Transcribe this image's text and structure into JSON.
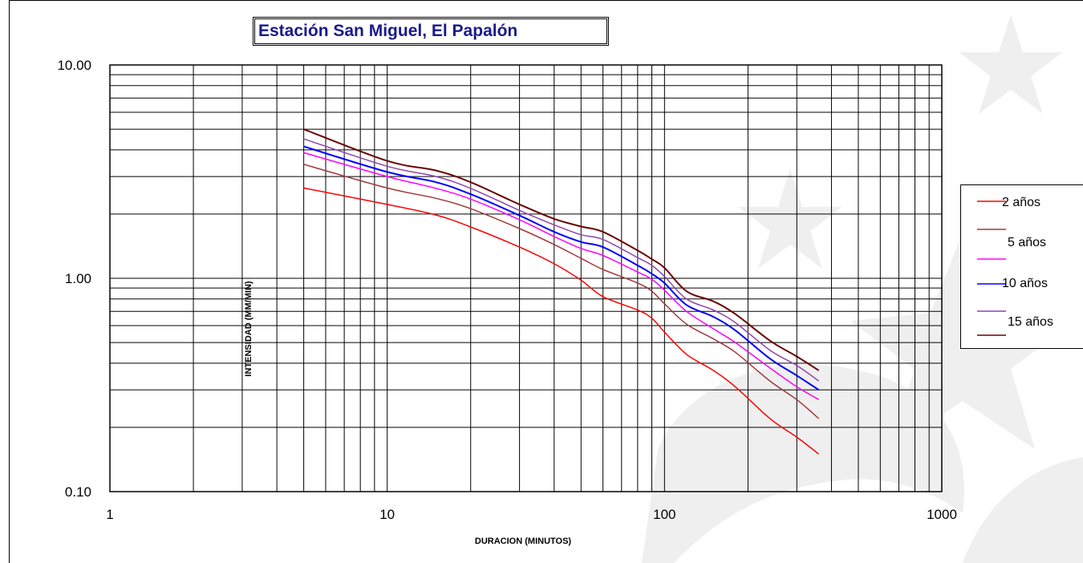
{
  "chart_data": {
    "type": "line",
    "title": "Estación San Miguel, El Papalón",
    "xlabel": "DURACION (MINUTOS)",
    "ylabel": "INTENSIDAD (MM/MIN)",
    "xscale": "log",
    "yscale": "log",
    "xlim": [
      1,
      1000
    ],
    "ylim": [
      0.1,
      10
    ],
    "x_tick_labels": [
      "1",
      "10",
      "100",
      "1000"
    ],
    "y_tick_labels": [
      "0.10",
      "1.00",
      "10.00"
    ],
    "grid": true,
    "legend_position": "right",
    "x": [
      5,
      10,
      15,
      20,
      30,
      40,
      50,
      60,
      80,
      90,
      100,
      120,
      150,
      180,
      240,
      300,
      360
    ],
    "series": [
      {
        "name": "2 años",
        "color": "#ff0000",
        "values": [
          2.65,
          2.22,
          1.98,
          1.74,
          1.4,
          1.17,
          0.98,
          0.82,
          0.71,
          0.65,
          0.56,
          0.44,
          0.37,
          0.31,
          0.22,
          0.18,
          0.15
        ]
      },
      {
        "name": "",
        "color": "#a0383c",
        "values": [
          3.42,
          2.65,
          2.37,
          2.12,
          1.71,
          1.44,
          1.24,
          1.1,
          0.95,
          0.87,
          0.76,
          0.61,
          0.52,
          0.45,
          0.33,
          0.27,
          0.22
        ]
      },
      {
        "name": "5 años",
        "color": "#ff00ff",
        "values": [
          3.88,
          3.0,
          2.64,
          2.35,
          1.88,
          1.57,
          1.38,
          1.28,
          1.07,
          0.99,
          0.88,
          0.7,
          0.58,
          0.5,
          0.38,
          0.31,
          0.27
        ]
      },
      {
        "name": "10 años",
        "color": "#0000ff",
        "values": [
          4.15,
          3.15,
          2.82,
          2.48,
          1.97,
          1.65,
          1.48,
          1.4,
          1.15,
          1.05,
          0.95,
          0.75,
          0.66,
          0.57,
          0.42,
          0.35,
          0.3
        ]
      },
      {
        "name": "",
        "color": "#8e44ad",
        "values": [
          4.5,
          3.35,
          3.0,
          2.64,
          2.08,
          1.78,
          1.6,
          1.52,
          1.25,
          1.15,
          1.02,
          0.8,
          0.71,
          0.62,
          0.46,
          0.39,
          0.33
        ]
      },
      {
        "name": "15 años",
        "color": "#6b0000",
        "values": [
          5.0,
          3.55,
          3.2,
          2.82,
          2.22,
          1.9,
          1.75,
          1.65,
          1.35,
          1.23,
          1.12,
          0.87,
          0.78,
          0.68,
          0.51,
          0.43,
          0.37
        ]
      }
    ],
    "legend_labels": [
      "2 años",
      "5 años",
      "10 años",
      "15 años"
    ]
  }
}
